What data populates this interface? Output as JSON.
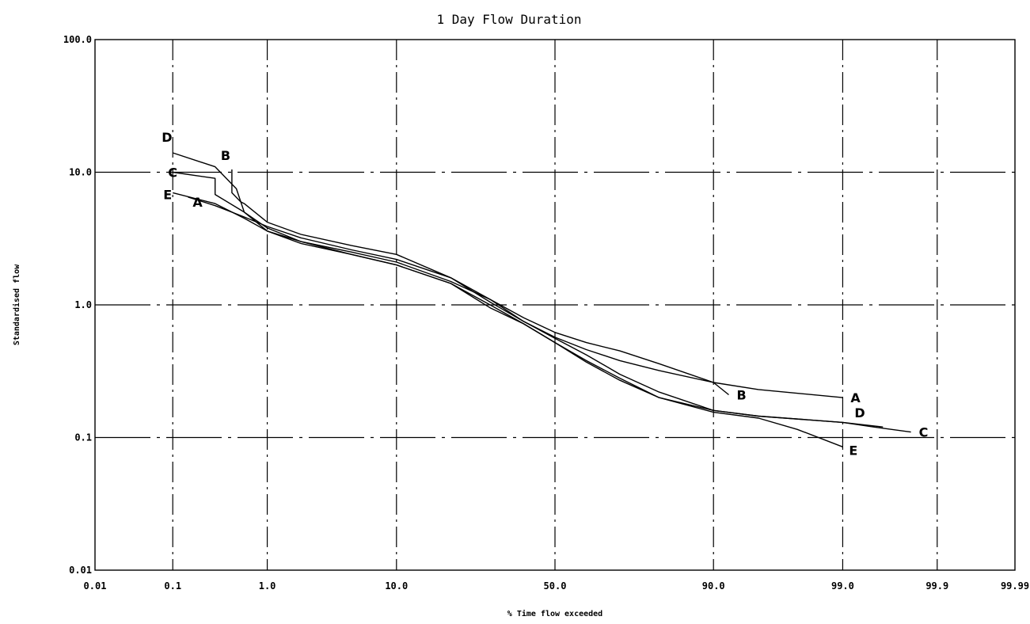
{
  "chart_data": {
    "type": "line",
    "title": "1 Day Flow Duration",
    "xlabel": "% Time flow exceeded",
    "ylabel": "Standardised flow",
    "x_scale": "normal-probability",
    "y_scale": "log",
    "xlim": [
      0.01,
      99.99
    ],
    "ylim": [
      0.01,
      100.0
    ],
    "grid": true,
    "x_ticks": [
      {
        "value": 0.01,
        "label": "0.01"
      },
      {
        "value": 0.1,
        "label": "0.1"
      },
      {
        "value": 1.0,
        "label": "1.0"
      },
      {
        "value": 10.0,
        "label": "10.0"
      },
      {
        "value": 50.0,
        "label": "50.0"
      },
      {
        "value": 90.0,
        "label": "90.0"
      },
      {
        "value": 99.0,
        "label": "99.0"
      },
      {
        "value": 99.9,
        "label": "99.9"
      },
      {
        "value": 99.99,
        "label": "99.99"
      }
    ],
    "y_ticks": [
      {
        "value": 100.0,
        "label": "100.0"
      },
      {
        "value": 10.0,
        "label": "10.0"
      },
      {
        "value": 1.0,
        "label": "1.0"
      },
      {
        "value": 0.1,
        "label": "0.1"
      },
      {
        "value": 0.01,
        "label": "0.01"
      }
    ],
    "series": [
      {
        "name": "A",
        "x": [
          0.15,
          0.3,
          0.6,
          1.0,
          2.0,
          5.0,
          10.0,
          20.0,
          30.0,
          40.0,
          50.0,
          60.0,
          70.0,
          80.0,
          90.0,
          95.0,
          99.0
        ],
        "y": [
          6.5,
          5.6,
          4.6,
          3.9,
          3.2,
          2.6,
          2.2,
          1.6,
          1.05,
          0.75,
          0.57,
          0.46,
          0.38,
          0.32,
          0.26,
          0.23,
          0.2
        ]
      },
      {
        "name": "B",
        "x": [
          0.45,
          0.45,
          0.55,
          0.6,
          1.0,
          2.0,
          5.0,
          10.0,
          20.0,
          30.0,
          40.0,
          50.0,
          60.0,
          70.0,
          80.0,
          90.0,
          92.0
        ],
        "y": [
          10.5,
          7.0,
          6.0,
          5.8,
          4.2,
          3.4,
          2.8,
          2.4,
          1.6,
          1.1,
          0.8,
          0.62,
          0.52,
          0.45,
          0.36,
          0.26,
          0.21
        ]
      },
      {
        "name": "C",
        "x": [
          0.1,
          0.3,
          0.3,
          0.6,
          1.0,
          2.0,
          5.0,
          10.0,
          20.0,
          30.0,
          40.0,
          50.0,
          60.0,
          70.0,
          80.0,
          90.0,
          95.0,
          99.0,
          99.5,
          99.8
        ],
        "y": [
          10.0,
          9.0,
          6.8,
          5.0,
          3.8,
          3.0,
          2.5,
          2.1,
          1.5,
          1.1,
          0.75,
          0.56,
          0.42,
          0.3,
          0.22,
          0.16,
          0.145,
          0.13,
          0.12,
          0.11
        ]
      },
      {
        "name": "D",
        "x": [
          0.1,
          0.3,
          0.5,
          0.6,
          1.0,
          2.0,
          5.0,
          10.0,
          20.0,
          30.0,
          40.0,
          50.0,
          60.0,
          70.0,
          80.0,
          90.0,
          95.0,
          99.0,
          99.6
        ],
        "y": [
          14.0,
          11.0,
          7.5,
          5.0,
          3.6,
          2.9,
          2.4,
          2.0,
          1.45,
          1.0,
          0.72,
          0.52,
          0.38,
          0.28,
          0.2,
          0.16,
          0.145,
          0.13,
          0.12
        ]
      },
      {
        "name": "E",
        "x": [
          0.1,
          0.3,
          0.6,
          1.0,
          2.0,
          5.0,
          10.0,
          20.0,
          30.0,
          40.0,
          50.0,
          60.0,
          70.0,
          80.0,
          90.0,
          95.0,
          97.5,
          99.0
        ],
        "y": [
          7.0,
          5.8,
          4.5,
          3.6,
          3.0,
          2.4,
          2.0,
          1.45,
          0.95,
          0.72,
          0.52,
          0.37,
          0.27,
          0.2,
          0.155,
          0.14,
          0.115,
          0.085
        ]
      }
    ]
  }
}
